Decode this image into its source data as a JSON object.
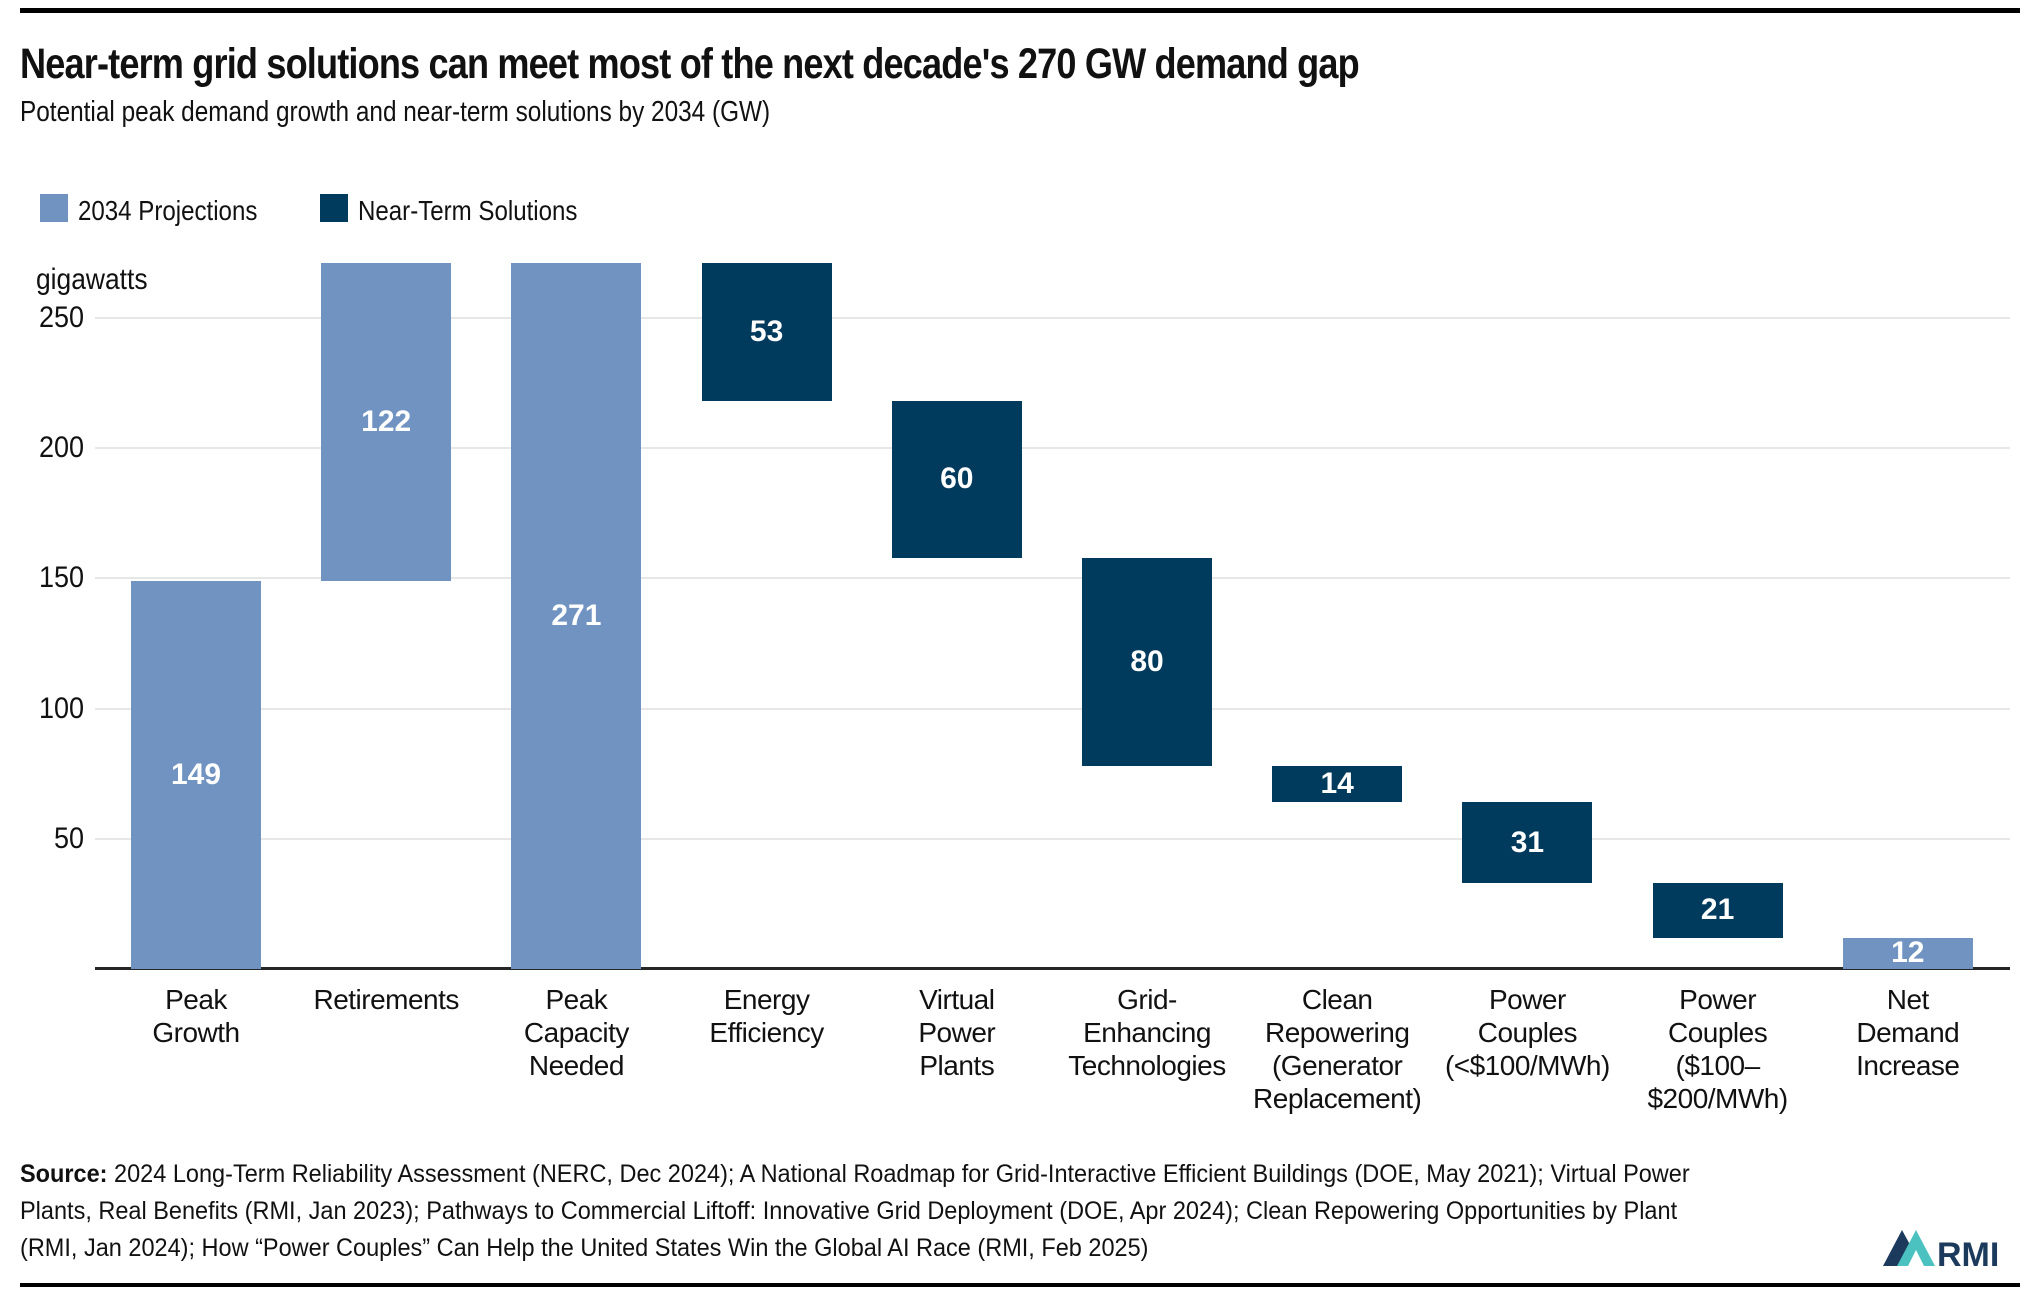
{
  "header": {
    "title": "Near-term grid solutions can meet most of the next decade's 270 GW demand gap",
    "subtitle": "Potential peak demand growth and near-term solutions by 2034 (GW)"
  },
  "colors": {
    "projection_blue": "#7093C2",
    "solution_navy": "#003A5D",
    "gridline": "#E7E7E7",
    "axis": "#262626",
    "logo_navy": "#1B3A5C",
    "logo_teal": "#4BC2C0"
  },
  "chart_data": {
    "type": "bar",
    "variant": "waterfall",
    "title": "Near-term grid solutions can meet most of the next decade's 270 GW demand gap",
    "subtitle": "Potential peak demand growth and near-term solutions by 2034 (GW)",
    "ylabel": "gigawatts",
    "yticks": [
      50,
      100,
      150,
      200,
      250
    ],
    "ylim": [
      0,
      276
    ],
    "grid": true,
    "legend_position": "top-left",
    "legend": [
      {
        "label": "2034 Projections",
        "color": "#7093C2"
      },
      {
        "label": "Near-Term Solutions",
        "color": "#003A5D"
      }
    ],
    "bars": [
      {
        "label": "Peak Growth",
        "label_lines": [
          "Peak",
          "Growth"
        ],
        "value": 149,
        "start": 0,
        "end": 149,
        "series": "2034 Projections"
      },
      {
        "label": "Retirements",
        "label_lines": [
          "Retirements"
        ],
        "value": 122,
        "start": 149,
        "end": 271,
        "series": "2034 Projections"
      },
      {
        "label": "Peak Capacity Needed",
        "label_lines": [
          "Peak",
          "Capacity",
          "Needed"
        ],
        "value": 271,
        "start": 0,
        "end": 271,
        "series": "2034 Projections"
      },
      {
        "label": "Energy Efficiency",
        "label_lines": [
          "Energy",
          "Efficiency"
        ],
        "value": 53,
        "start": 218,
        "end": 271,
        "series": "Near-Term Solutions"
      },
      {
        "label": "Virtual Power Plants",
        "label_lines": [
          "Virtual",
          "Power",
          "Plants"
        ],
        "value": 60,
        "start": 158,
        "end": 218,
        "series": "Near-Term Solutions"
      },
      {
        "label": "Grid-Enhancing Technologies",
        "label_lines": [
          "Grid-",
          "Enhancing",
          "Technologies"
        ],
        "value": 80,
        "start": 78,
        "end": 158,
        "series": "Near-Term Solutions"
      },
      {
        "label": "Clean Repowering (Generator Replacement)",
        "label_lines": [
          "Clean",
          "Repowering",
          "(Generator",
          "Replacement)"
        ],
        "value": 14,
        "start": 64,
        "end": 78,
        "series": "Near-Term Solutions"
      },
      {
        "label": "Power Couples (<$100/MWh)",
        "label_lines": [
          "Power",
          "Couples",
          "(<$100/MWh)"
        ],
        "value": 31,
        "start": 33,
        "end": 64,
        "series": "Near-Term Solutions"
      },
      {
        "label": "Power Couples ($100–$200/MWh)",
        "label_lines": [
          "Power",
          "Couples",
          "($100–",
          "$200/MWh)"
        ],
        "value": 21,
        "start": 12,
        "end": 33,
        "series": "Near-Term Solutions"
      },
      {
        "label": "Net Demand Increase",
        "label_lines": [
          "Net",
          "Demand",
          "Increase"
        ],
        "value": 12,
        "start": 0,
        "end": 12,
        "series": "2034 Projections"
      }
    ]
  },
  "source": {
    "label": "Source:",
    "lines": [
      " 2024 Long-Term Reliability Assessment (NERC, Dec 2024); A National Roadmap for Grid-Interactive Efficient Buildings (DOE, May 2021); Virtual Power",
      "Plants, Real Benefits (RMI, Jan 2023); Pathways to Commercial Liftoff: Innovative Grid Deployment (DOE, Apr 2024); Clean Repowering Opportunities by Plant",
      "(RMI, Jan 2024); How “Power Couples” Can Help the United States Win the Global AI Race (RMI, Feb 2025)"
    ]
  },
  "logo": {
    "text": "RMI"
  }
}
